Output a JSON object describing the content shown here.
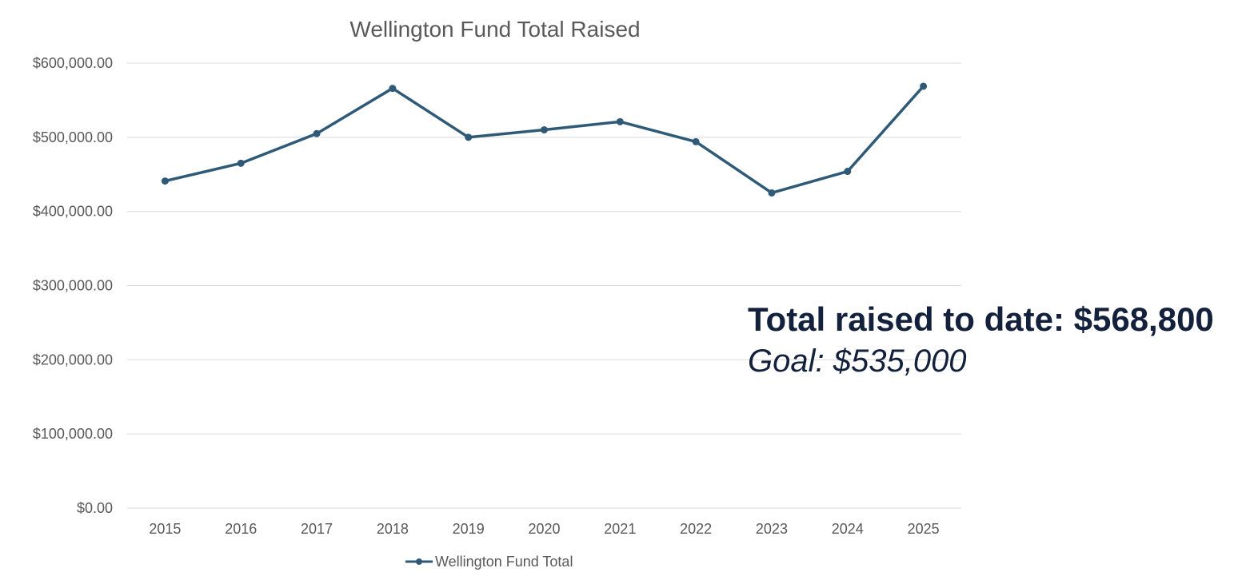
{
  "chart_data": {
    "type": "line",
    "title": "Wellington Fund Total Raised",
    "xlabel": "",
    "ylabel": "",
    "categories": [
      "2015",
      "2016",
      "2017",
      "2018",
      "2019",
      "2020",
      "2021",
      "2022",
      "2023",
      "2024",
      "2025"
    ],
    "series": [
      {
        "name": "Wellington Fund Total",
        "values": [
          441000,
          465000,
          505000,
          566000,
          500000,
          510000,
          521000,
          494000,
          425000,
          454000,
          568800
        ],
        "color": "#2e5a78"
      }
    ],
    "ylim": [
      0,
      600000
    ],
    "yticks": [
      0,
      100000,
      200000,
      300000,
      400000,
      500000,
      600000
    ],
    "ytick_labels": [
      "$0.00",
      "$100,000.00",
      "$200,000.00",
      "$300,000.00",
      "$400,000.00",
      "$500,000.00",
      "$600,000.00"
    ],
    "grid": true,
    "gridline_color": "#d9d9d9",
    "legend_position": "bottom"
  },
  "annotations": {
    "total": "Total raised to date: $568,800",
    "goal": "Goal: $535,000"
  }
}
